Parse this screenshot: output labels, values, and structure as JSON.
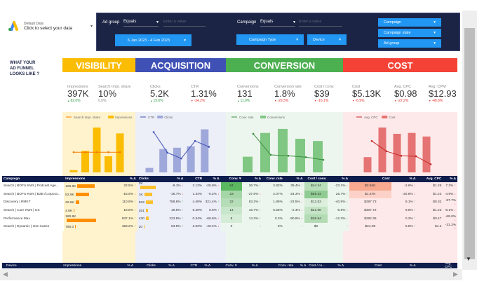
{
  "source": {
    "line1": "Default Data",
    "line2": "Click to select your data"
  },
  "filters": {
    "adgroup": {
      "label": "Ad group",
      "operator": "Equals",
      "placeholder": "Enter a value"
    },
    "campaign": {
      "label": "Campaign",
      "operator": "Equals",
      "placeholder": "Enter a value"
    },
    "date_range": "6 Jan 2023 - 4 Feb 2023",
    "campaign_type": "Campaign Type",
    "device": "Device",
    "right": [
      "Campaign",
      "Campaign state",
      "Ad group"
    ]
  },
  "funnel_title": [
    "WHAT YOUR",
    "AD FUNNEL",
    "LOOKS LIKE ?"
  ],
  "sections": [
    {
      "label": "VISIBILITY",
      "color": "#fbbc04"
    },
    {
      "label": "ACQUISITION",
      "color": "#3f51b5"
    },
    {
      "label": "CONVERSION",
      "color": "#4caf50"
    },
    {
      "label": "COST",
      "color": "#f44336"
    }
  ],
  "kpis": [
    {
      "name": "Impressions",
      "value": "397K",
      "delta": "82.0%",
      "dir": "up"
    },
    {
      "name": "Search Impr. share",
      "value": "10%",
      "delta": "0.0%",
      "dir": "neu"
    },
    {
      "name": "Clicks",
      "value": "5.2K",
      "delta": "19.6%",
      "dir": "up"
    },
    {
      "name": "CTR",
      "value": "1.31%",
      "delta": "-34.2%",
      "dir": "dn"
    },
    {
      "name": "Conversions",
      "value": "131",
      "delta": "11.0%",
      "dir": "up"
    },
    {
      "name": "Conversion rate",
      "value": "1.8%",
      "delta": "-29.3%",
      "dir": "dn"
    },
    {
      "name": "Cost / conv.",
      "value": "$39",
      "delta": "-16.1%",
      "dir": "dn"
    },
    {
      "name": "Cost",
      "value": "$5.13K",
      "delta": "-6.9%",
      "dir": "dn"
    },
    {
      "name": "Avg. CPC",
      "value": "$0.98",
      "delta": "-22.2%",
      "dir": "dn"
    },
    {
      "name": "Avg. CPM",
      "value": "$12.93",
      "delta": "-48.8%",
      "dir": "dn"
    }
  ],
  "chart_data": [
    {
      "type": "bar",
      "legend": [
        "Search Impr. share",
        "Impressions"
      ],
      "bar_color": "#fbbc04",
      "line_color": "#f57c00",
      "bars": [
        5,
        48,
        100,
        36,
        87
      ],
      "line": [
        45,
        45,
        45,
        45,
        45
      ]
    },
    {
      "type": "bar",
      "legend": [
        "CTR",
        "Clicks"
      ],
      "bar_color": "#9fa8da",
      "line_color": "#3f51b5",
      "bars": [
        10,
        52,
        55,
        58,
        96
      ],
      "line": [
        90,
        44,
        31,
        70,
        57
      ]
    },
    {
      "type": "bar",
      "legend": [
        "Conv. rate",
        "Conversions"
      ],
      "bar_color": "#81c784",
      "line_color": "#388e3c",
      "bars": [
        35,
        88,
        97,
        75,
        70
      ],
      "line": [
        86,
        39,
        37,
        34,
        28
      ]
    },
    {
      "type": "bar",
      "legend": [
        "Avg. CPC",
        "Cost"
      ],
      "bar_color": "#e57373",
      "line_color": "#c62828",
      "bars": [
        34,
        100,
        86,
        88,
        80
      ],
      "line": [
        70,
        47,
        37,
        36,
        18
      ]
    }
  ],
  "table": {
    "headers": [
      "Campaign",
      "Impressions",
      "% Δ",
      "Clicks",
      "% Δ",
      "CTR",
      "% Δ",
      "Conv. ▾",
      "% Δ",
      "Conv. rate",
      "% Δ",
      "Cost / conv.",
      "% Δ",
      "Cost",
      "% Δ",
      "Avg. CPC",
      "% Δ"
    ],
    "rows": [
      [
        "Search | BOFU KWs | Podcast Age...",
        "106.8K",
        "22.5%",
        "2K",
        "-9.1%",
        "2.13%",
        "-25.8%",
        "64",
        "26.7%",
        "2.82%",
        "39.4%",
        "$44.34",
        "-23.1%",
        "$2.84K",
        "-2.6%",
        "$1.25",
        "7.2%"
      ],
      [
        "Search | BOFU KWs | B2B /Corpora...",
        "82.9K",
        "-16.5%",
        "1K",
        "-16.7%",
        "1.34%",
        "-0.2%",
        "23",
        "-37.8%",
        "2.07%",
        "-24.3%",
        "$59.43",
        "25.7%",
        "$1.37K",
        "-20.8%",
        "$1.23",
        "-4.9%"
      ],
      [
        "Discovery | RMKT",
        "20.6K",
        "110.9%",
        "933",
        "788.6%",
        "4.48%",
        "321.4%",
        "22",
        "83.3%",
        "1.89%",
        "-23.5%",
        "$13.53",
        "-40.5%",
        "$297.73",
        "9.1%",
        "$0.32",
        "-87.7%"
      ],
      [
        "Search | Core KWs | US",
        "4.6K",
        "18.8%",
        "251",
        "19.5%",
        "5.49%",
        "0.6%",
        "14",
        "16.7%",
        "5.58%",
        "-2.4%",
        "$21.98",
        "-5.9%",
        "$307.72",
        "9.8%",
        "$1.23",
        "-6.1%"
      ],
      [
        "Performance Max",
        "180.8K",
        "937.1%",
        "430",
        "223.9%",
        "0.34%",
        "-68.6%",
        "8",
        "14.3%",
        "0.3%",
        "-90.8%",
        "$36.54",
        "-12.3%",
        "$292.35",
        "0.2%",
        "$0.47",
        "-69.0%"
      ],
      [
        "Search | Dynamic | Use Cases",
        "790.0",
        "158.2%",
        "20",
        "53.8%",
        "2.53%",
        "-40.4%",
        "0",
        "-",
        "0%",
        "-",
        "$0",
        "-",
        "$24.08",
        "5.8%",
        "$1.2",
        "-31.3%"
      ]
    ]
  },
  "table2_headers": [
    "Device",
    "Impressions",
    "% Δ",
    "Clicks",
    "% Δ",
    "CTR",
    "% Δ",
    "Conv. ▾",
    "% Δ",
    "Conv. rate",
    "% Δ",
    "Cost / co...",
    "% Δ",
    "Cost",
    "% Δ",
    "Avg. CPC",
    "% Δ"
  ]
}
